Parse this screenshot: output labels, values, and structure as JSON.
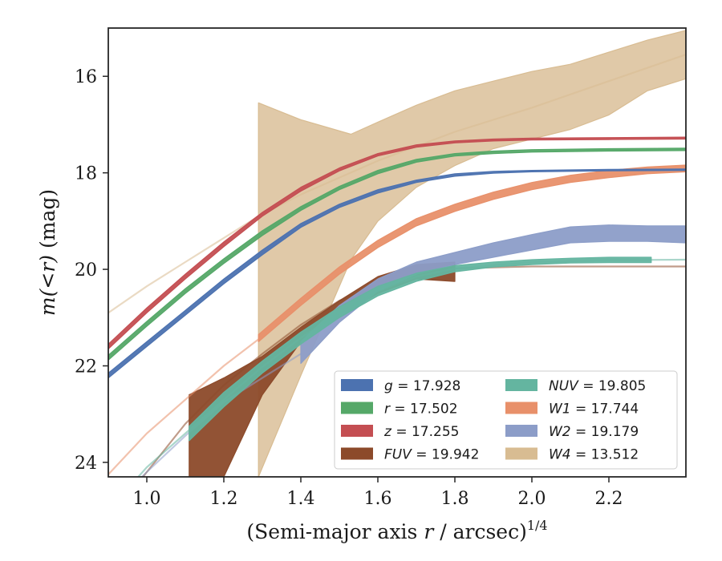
{
  "chart_data": {
    "type": "area",
    "xlabel": "(Semi-major axis r / arcsec)^1/4",
    "xlabel_main": "(Semi-major axis ",
    "xlabel_var": "r",
    "xlabel_rest": " / arcsec)",
    "xlabel_sup": "1/4",
    "ylabel": "m(<r) (mag)",
    "ylabel_var": "m(<r)",
    "ylabel_unit": " (mag)",
    "xlim": [
      0.9,
      2.4
    ],
    "ylim": [
      24.3,
      15.0
    ],
    "y_inverted": true,
    "xticks": [
      1.0,
      1.2,
      1.4,
      1.6,
      1.8,
      2.0,
      2.2
    ],
    "xtick_labels": [
      "1.0",
      "1.2",
      "1.4",
      "1.6",
      "1.8",
      "2.0",
      "2.2"
    ],
    "yticks": [
      16,
      18,
      20,
      22,
      24
    ],
    "ytick_labels": [
      "16",
      "18",
      "20",
      "22",
      "24"
    ],
    "legend_position": "lower-right",
    "series": [
      {
        "key": "g",
        "name": "g = 17.928",
        "band": "g",
        "value": "17.928",
        "color": "#4c72b0",
        "x": [
          0.9,
          1.0,
          1.1,
          1.2,
          1.3,
          1.4,
          1.5,
          1.6,
          1.7,
          1.8,
          1.9,
          2.0,
          2.2,
          2.4
        ],
        "y_low": [
          22.15,
          21.5,
          20.85,
          20.2,
          19.6,
          19.05,
          18.65,
          18.35,
          18.15,
          18.02,
          17.97,
          17.95,
          17.93,
          17.92
        ],
        "y_high": [
          22.25,
          21.6,
          20.95,
          20.3,
          19.7,
          19.13,
          18.72,
          18.42,
          18.2,
          18.07,
          18.01,
          17.98,
          17.96,
          17.95
        ],
        "faint_to": 1.8
      },
      {
        "key": "r",
        "name": "r = 17.502",
        "band": "r",
        "value": "17.502",
        "color": "#55a868",
        "x": [
          0.9,
          1.0,
          1.1,
          1.2,
          1.3,
          1.4,
          1.5,
          1.6,
          1.7,
          1.8,
          1.9,
          2.0,
          2.2,
          2.4
        ],
        "y_low": [
          21.78,
          21.08,
          20.4,
          19.78,
          19.2,
          18.7,
          18.28,
          17.95,
          17.72,
          17.6,
          17.55,
          17.52,
          17.5,
          17.49
        ],
        "y_high": [
          21.88,
          21.18,
          20.5,
          19.88,
          19.3,
          18.78,
          18.35,
          18.02,
          17.78,
          17.65,
          17.6,
          17.57,
          17.55,
          17.54
        ],
        "faint_to": 1.7
      },
      {
        "key": "z",
        "name": "z = 17.255",
        "band": "z",
        "value": "17.255",
        "color": "#c44e52",
        "x": [
          0.9,
          1.0,
          1.1,
          1.2,
          1.3,
          1.4,
          1.5,
          1.6,
          1.7,
          1.8,
          1.9,
          2.0,
          2.2,
          2.4
        ],
        "y_low": [
          21.55,
          20.8,
          20.1,
          19.43,
          18.82,
          18.3,
          17.9,
          17.6,
          17.42,
          17.34,
          17.3,
          17.28,
          17.27,
          17.26
        ],
        "y_high": [
          21.65,
          20.9,
          20.2,
          19.53,
          18.9,
          18.38,
          17.96,
          17.65,
          17.47,
          17.38,
          17.34,
          17.32,
          17.31,
          17.3
        ],
        "faint_to": 1.7
      },
      {
        "key": "fuv",
        "name": "FUV = 19.942",
        "band": "FUV",
        "value": "19.942",
        "color": "#8c4a2a",
        "x": [
          1.11,
          1.2,
          1.3,
          1.4,
          1.5,
          1.6,
          1.7,
          1.8
        ],
        "y_low": [
          24.3,
          24.3,
          22.6,
          21.5,
          20.95,
          20.5,
          20.2,
          20.25
        ],
        "y_high": [
          22.6,
          22.25,
          21.8,
          21.2,
          20.65,
          20.15,
          19.9,
          19.85
        ],
        "faint_x": [
          0.9,
          1.0,
          1.1,
          1.2,
          1.3,
          1.4,
          1.5,
          1.6,
          1.7,
          1.8,
          2.0,
          2.4
        ],
        "faint_y": [
          25.2,
          24.2,
          23.2,
          22.4,
          21.75,
          21.15,
          20.65,
          20.3,
          20.08,
          19.98,
          19.94,
          19.94
        ]
      },
      {
        "key": "nuv",
        "name": "NUV = 19.805",
        "band": "NUV",
        "value": "19.805",
        "color": "#64b5a0",
        "x": [
          1.11,
          1.2,
          1.3,
          1.4,
          1.5,
          1.6,
          1.7,
          1.8,
          1.9,
          2.0,
          2.1,
          2.2,
          2.31
        ],
        "y_low": [
          23.55,
          22.85,
          22.15,
          21.55,
          21.0,
          20.55,
          20.25,
          20.05,
          19.95,
          19.9,
          19.87,
          19.86,
          19.86
        ],
        "y_high": [
          23.25,
          22.55,
          21.9,
          21.3,
          20.78,
          20.35,
          20.08,
          19.92,
          19.85,
          19.8,
          19.77,
          19.75,
          19.75
        ],
        "faint_x": [
          0.9,
          1.0,
          1.1,
          1.2,
          1.3,
          1.4,
          1.5,
          1.6,
          1.7,
          1.8,
          2.0,
          2.2,
          2.4
        ],
        "faint_y": [
          25.0,
          24.1,
          23.4,
          22.7,
          22.02,
          21.42,
          20.9,
          20.45,
          20.15,
          19.98,
          19.85,
          19.81,
          19.8
        ]
      },
      {
        "key": "w1",
        "name": "W1 = 17.744",
        "band": "W1",
        "value": "17.744",
        "color": "#e8906a",
        "x": [
          1.29,
          1.4,
          1.5,
          1.6,
          1.7,
          1.8,
          1.9,
          2.0,
          2.1,
          2.2,
          2.3,
          2.4
        ],
        "y_low": [
          21.5,
          20.75,
          20.1,
          19.55,
          19.1,
          18.8,
          18.55,
          18.35,
          18.2,
          18.1,
          18.02,
          17.98
        ],
        "y_high": [
          21.35,
          20.6,
          19.95,
          19.4,
          18.95,
          18.65,
          18.4,
          18.2,
          18.05,
          17.95,
          17.88,
          17.84
        ],
        "faint_x": [
          0.9,
          1.0,
          1.1,
          1.2,
          1.29
        ],
        "faint_y": [
          24.25,
          23.4,
          22.7,
          22.0,
          21.45
        ]
      },
      {
        "key": "w2",
        "name": "W2 = 19.179",
        "band": "W2",
        "value": "19.179",
        "color": "#8c9dc8",
        "x": [
          1.4,
          1.5,
          1.6,
          1.7,
          1.8,
          1.9,
          2.0,
          2.1,
          2.2,
          2.3,
          2.4
        ],
        "y_low": [
          21.95,
          21.1,
          20.45,
          20.1,
          19.9,
          19.75,
          19.6,
          19.45,
          19.42,
          19.42,
          19.45
        ],
        "y_high": [
          21.5,
          20.75,
          20.2,
          19.85,
          19.65,
          19.45,
          19.28,
          19.12,
          19.08,
          19.1,
          19.1
        ],
        "faint_x": [
          0.9,
          1.0,
          1.1,
          1.2,
          1.3,
          1.4
        ],
        "faint_y": [
          25.0,
          24.2,
          23.45,
          22.75,
          22.25,
          21.75
        ]
      },
      {
        "key": "w4",
        "name": "W4 = 13.512",
        "band": "W4",
        "value": "13.512",
        "color": "#d8bc92",
        "x": [
          1.29,
          1.4,
          1.53,
          1.6,
          1.7,
          1.8,
          1.9,
          2.0,
          2.1,
          2.2,
          2.3,
          2.4
        ],
        "y_low": [
          24.3,
          22.2,
          19.8,
          19.0,
          18.3,
          17.85,
          17.5,
          17.3,
          17.1,
          16.8,
          16.3,
          16.05
        ],
        "y_high": [
          16.55,
          16.9,
          17.2,
          16.95,
          16.6,
          16.3,
          16.1,
          15.9,
          15.75,
          15.5,
          15.25,
          15.05
        ],
        "faint_x": [
          0.9,
          1.0,
          1.1,
          1.2,
          1.29,
          1.4,
          1.6,
          1.8,
          2.0,
          2.2,
          2.4
        ],
        "faint_y": [
          20.9,
          20.35,
          19.85,
          19.35,
          18.9,
          18.45,
          17.75,
          17.15,
          16.65,
          16.1,
          15.55
        ]
      }
    ]
  }
}
